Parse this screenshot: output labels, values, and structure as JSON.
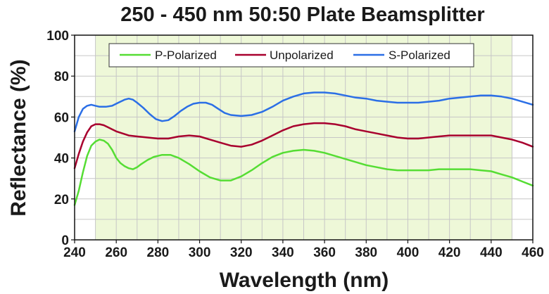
{
  "chart_data": {
    "type": "line",
    "title": "250 - 450 nm 50:50 Plate Beamsplitter",
    "xlabel": "Wavelength (nm)",
    "ylabel": "Reflectance (%)",
    "xlim": [
      240,
      460
    ],
    "ylim": [
      0,
      100
    ],
    "x_ticks": [
      240,
      260,
      280,
      300,
      320,
      340,
      360,
      380,
      400,
      420,
      440,
      460
    ],
    "y_ticks": [
      0,
      20,
      40,
      60,
      80,
      100
    ],
    "grid": true,
    "shaded_range": [
      250,
      450
    ],
    "shaded_color": "#eef8d8",
    "plot_background": "#ffffff",
    "legend_position": "top",
    "series": [
      {
        "name": "P-Polarized",
        "color": "#55dd33",
        "points": [
          [
            240,
            17
          ],
          [
            242,
            24
          ],
          [
            244,
            33
          ],
          [
            246,
            41
          ],
          [
            248,
            46
          ],
          [
            250,
            48
          ],
          [
            252,
            49
          ],
          [
            254,
            48.5
          ],
          [
            256,
            47
          ],
          [
            258,
            44
          ],
          [
            260,
            40
          ],
          [
            262,
            37.5
          ],
          [
            264,
            36
          ],
          [
            266,
            35
          ],
          [
            268,
            34.5
          ],
          [
            270,
            35.5
          ],
          [
            272,
            37
          ],
          [
            275,
            39
          ],
          [
            278,
            40.5
          ],
          [
            282,
            41.5
          ],
          [
            286,
            41.5
          ],
          [
            290,
            40
          ],
          [
            295,
            37
          ],
          [
            300,
            33.5
          ],
          [
            305,
            30.5
          ],
          [
            310,
            29
          ],
          [
            315,
            29
          ],
          [
            320,
            31
          ],
          [
            325,
            34
          ],
          [
            330,
            37.5
          ],
          [
            335,
            40.5
          ],
          [
            340,
            42.5
          ],
          [
            345,
            43.5
          ],
          [
            350,
            44
          ],
          [
            355,
            43.5
          ],
          [
            360,
            42.5
          ],
          [
            365,
            41
          ],
          [
            370,
            39.5
          ],
          [
            375,
            38
          ],
          [
            380,
            36.5
          ],
          [
            385,
            35.5
          ],
          [
            390,
            34.5
          ],
          [
            395,
            34
          ],
          [
            400,
            34
          ],
          [
            405,
            34
          ],
          [
            410,
            34
          ],
          [
            415,
            34.5
          ],
          [
            420,
            34.5
          ],
          [
            425,
            34.5
          ],
          [
            430,
            34.5
          ],
          [
            435,
            34
          ],
          [
            440,
            33.5
          ],
          [
            445,
            32
          ],
          [
            450,
            30.5
          ],
          [
            455,
            28.5
          ],
          [
            460,
            26.5
          ]
        ]
      },
      {
        "name": "Unpolarized",
        "color": "#a8002e",
        "points": [
          [
            240,
            35
          ],
          [
            242,
            42
          ],
          [
            244,
            48
          ],
          [
            246,
            52.5
          ],
          [
            248,
            55.5
          ],
          [
            250,
            56.5
          ],
          [
            252,
            56.5
          ],
          [
            254,
            56
          ],
          [
            256,
            55
          ],
          [
            258,
            54
          ],
          [
            260,
            53
          ],
          [
            263,
            52
          ],
          [
            266,
            51
          ],
          [
            270,
            50.5
          ],
          [
            275,
            50
          ],
          [
            280,
            49.5
          ],
          [
            285,
            49.5
          ],
          [
            290,
            50.5
          ],
          [
            295,
            51
          ],
          [
            300,
            50.5
          ],
          [
            305,
            49
          ],
          [
            310,
            47.5
          ],
          [
            315,
            46
          ],
          [
            320,
            45.5
          ],
          [
            325,
            46.5
          ],
          [
            330,
            48.5
          ],
          [
            335,
            51
          ],
          [
            340,
            53.5
          ],
          [
            345,
            55.5
          ],
          [
            350,
            56.5
          ],
          [
            355,
            57
          ],
          [
            360,
            57
          ],
          [
            365,
            56.5
          ],
          [
            370,
            55.5
          ],
          [
            375,
            54
          ],
          [
            380,
            53
          ],
          [
            385,
            52
          ],
          [
            390,
            51
          ],
          [
            395,
            50
          ],
          [
            400,
            49.5
          ],
          [
            405,
            49.5
          ],
          [
            410,
            50
          ],
          [
            415,
            50.5
          ],
          [
            420,
            51
          ],
          [
            425,
            51
          ],
          [
            430,
            51
          ],
          [
            435,
            51
          ],
          [
            440,
            51
          ],
          [
            445,
            50
          ],
          [
            450,
            49
          ],
          [
            455,
            47.5
          ],
          [
            460,
            45.5
          ]
        ]
      },
      {
        "name": "S-Polarized",
        "color": "#2b6fe6",
        "points": [
          [
            240,
            53
          ],
          [
            242,
            60
          ],
          [
            244,
            64
          ],
          [
            246,
            65.5
          ],
          [
            248,
            66
          ],
          [
            250,
            65.5
          ],
          [
            252,
            65
          ],
          [
            255,
            65
          ],
          [
            258,
            65.5
          ],
          [
            261,
            67
          ],
          [
            264,
            68.5
          ],
          [
            266,
            69
          ],
          [
            268,
            68.5
          ],
          [
            270,
            67
          ],
          [
            273,
            64.5
          ],
          [
            276,
            61.5
          ],
          [
            279,
            59
          ],
          [
            282,
            58
          ],
          [
            285,
            58.5
          ],
          [
            288,
            60.5
          ],
          [
            291,
            63
          ],
          [
            294,
            65
          ],
          [
            297,
            66.5
          ],
          [
            300,
            67
          ],
          [
            303,
            67
          ],
          [
            306,
            66
          ],
          [
            309,
            64
          ],
          [
            312,
            62
          ],
          [
            315,
            61
          ],
          [
            320,
            60.5
          ],
          [
            325,
            61
          ],
          [
            330,
            62.5
          ],
          [
            335,
            65
          ],
          [
            340,
            68
          ],
          [
            345,
            70
          ],
          [
            350,
            71.5
          ],
          [
            355,
            72
          ],
          [
            360,
            72
          ],
          [
            365,
            71.5
          ],
          [
            370,
            70.5
          ],
          [
            375,
            69.5
          ],
          [
            380,
            69
          ],
          [
            385,
            68
          ],
          [
            390,
            67.5
          ],
          [
            395,
            67
          ],
          [
            400,
            67
          ],
          [
            405,
            67
          ],
          [
            410,
            67.5
          ],
          [
            415,
            68
          ],
          [
            420,
            69
          ],
          [
            425,
            69.5
          ],
          [
            430,
            70
          ],
          [
            435,
            70.5
          ],
          [
            440,
            70.5
          ],
          [
            445,
            70
          ],
          [
            450,
            69
          ],
          [
            455,
            67.5
          ],
          [
            460,
            66
          ]
        ]
      }
    ]
  }
}
